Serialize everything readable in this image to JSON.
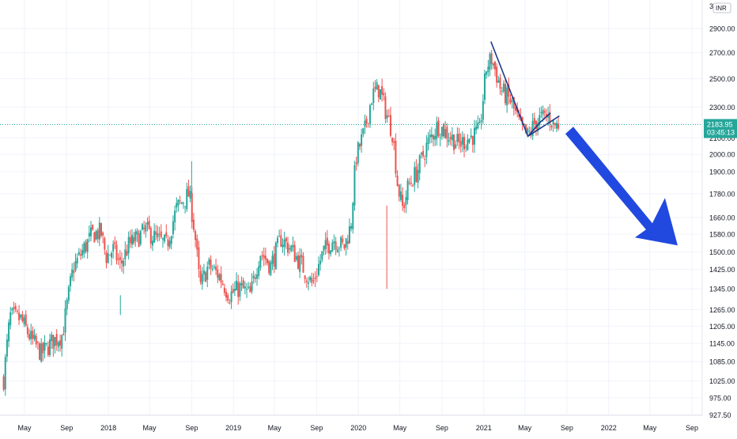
{
  "chart_data": {
    "type": "candlestick",
    "currency_badge": "INR",
    "top_label": "31​00",
    "log_scale": true,
    "grid": true,
    "y_ticks": [
      2900,
      2700,
      2500,
      2300,
      2100,
      2000,
      1900,
      1780,
      1660,
      1580,
      1500,
      1425,
      1345,
      1265,
      1205,
      1145,
      1085,
      1025,
      975,
      927.5
    ],
    "y_tick_labels": [
      "2900.00",
      "2700.00",
      "2500.00",
      "2300.00",
      "2100.00",
      "2000.00",
      "1900.00",
      "1780.00",
      "1660.00",
      "1580.00",
      "1500.00",
      "1425.00",
      "1345.00",
      "1265.00",
      "1205.00",
      "1145.00",
      "1085.00",
      "1025.00",
      "975.00",
      "927.50"
    ],
    "x_ticks": [
      {
        "label": "May",
        "date": "2017-05-01"
      },
      {
        "label": "Sep",
        "date": "2017-09-01"
      },
      {
        "label": "2018",
        "date": "2018-01-01"
      },
      {
        "label": "May",
        "date": "2018-05-01"
      },
      {
        "label": "Sep",
        "date": "2018-09-01"
      },
      {
        "label": "2019",
        "date": "2019-01-01"
      },
      {
        "label": "May",
        "date": "2019-05-01"
      },
      {
        "label": "Sep",
        "date": "2019-09-01"
      },
      {
        "label": "2020",
        "date": "2020-01-01"
      },
      {
        "label": "May",
        "date": "2020-05-01"
      },
      {
        "label": "Sep",
        "date": "2020-09-01"
      },
      {
        "label": "2021",
        "date": "2021-01-01"
      },
      {
        "label": "May",
        "date": "2021-05-01"
      },
      {
        "label": "Sep",
        "date": "2021-09-01"
      },
      {
        "label": "2022",
        "date": "2022-01-01"
      },
      {
        "label": "May",
        "date": "2022-05-01"
      },
      {
        "label": "Sep",
        "date": "2022-09-01"
      }
    ],
    "last_price": 2183.95,
    "last_price_label": "2183.95",
    "countdown_label": "03:45:13",
    "colors": {
      "up": "#26a69a",
      "down": "#ef5350",
      "trendline": "#1e3a8a",
      "arrow": "#2149e0",
      "price_line": "#26a69a",
      "grid": "#f0f3fa",
      "axis_text": "#131722"
    },
    "price_path": [
      [
        "2017-03-01",
        1030
      ],
      [
        "2017-03-20",
        1240
      ],
      [
        "2017-04-20",
        1230
      ],
      [
        "2017-05-20",
        1160
      ],
      [
        "2017-06-20",
        1110
      ],
      [
        "2017-07-20",
        1150
      ],
      [
        "2017-08-20",
        1175
      ],
      [
        "2017-09-20",
        1430
      ],
      [
        "2017-10-20",
        1510
      ],
      [
        "2017-11-15",
        1580
      ],
      [
        "2017-12-10",
        1590
      ],
      [
        "2017-12-25",
        1480
      ],
      [
        "2018-01-15",
        1510
      ],
      [
        "2018-02-05",
        1440
      ],
      [
        "2018-03-01",
        1530
      ],
      [
        "2018-03-25",
        1560
      ],
      [
        "2018-04-20",
        1600
      ],
      [
        "2018-05-20",
        1560
      ],
      [
        "2018-06-20",
        1530
      ],
      [
        "2018-07-20",
        1710
      ],
      [
        "2018-08-25",
        1780
      ],
      [
        "2018-09-10",
        1590
      ],
      [
        "2018-09-25",
        1350
      ],
      [
        "2018-10-20",
        1440
      ],
      [
        "2018-11-20",
        1400
      ],
      [
        "2018-12-20",
        1320
      ],
      [
        "2019-01-20",
        1350
      ],
      [
        "2019-02-20",
        1320
      ],
      [
        "2019-03-20",
        1500
      ],
      [
        "2019-04-20",
        1440
      ],
      [
        "2019-05-20",
        1560
      ],
      [
        "2019-06-20",
        1510
      ],
      [
        "2019-07-20",
        1440
      ],
      [
        "2019-08-20",
        1360
      ],
      [
        "2019-09-20",
        1500
      ],
      [
        "2019-10-20",
        1560
      ],
      [
        "2019-11-20",
        1520
      ],
      [
        "2019-12-10",
        1620
      ],
      [
        "2019-12-25",
        1980
      ],
      [
        "2020-01-20",
        2150
      ],
      [
        "2020-02-10",
        2380
      ],
      [
        "2020-03-01",
        2430
      ],
      [
        "2020-03-20",
        2280
      ],
      [
        "2020-04-10",
        2130
      ],
      [
        "2020-04-25",
        1820
      ],
      [
        "2020-05-10",
        1700
      ],
      [
        "2020-05-25",
        1820
      ],
      [
        "2020-06-20",
        1900
      ],
      [
        "2020-07-20",
        2060
      ],
      [
        "2020-08-20",
        2180
      ],
      [
        "2020-09-20",
        2120
      ],
      [
        "2020-10-20",
        2060
      ],
      [
        "2020-11-20",
        2100
      ],
      [
        "2020-12-20",
        2140
      ],
      [
        "2021-01-10",
        2600
      ],
      [
        "2021-01-25",
        2650
      ],
      [
        "2021-02-20",
        2420
      ],
      [
        "2021-03-20",
        2340
      ],
      [
        "2021-04-20",
        2160
      ],
      [
        "2021-05-10",
        2110
      ],
      [
        "2021-06-01",
        2200
      ],
      [
        "2021-06-20",
        2230
      ],
      [
        "2021-07-10",
        2240
      ],
      [
        "2021-07-25",
        2180
      ],
      [
        "2021-08-10",
        2183.95
      ]
    ],
    "annotations": {
      "trendlines": [
        [
          [
            "2021-01-22",
            2790
          ],
          [
            "2021-05-10",
            2110
          ]
        ],
        [
          [
            "2021-05-10",
            2110
          ],
          [
            "2021-06-15",
            2200
          ],
          [
            "2021-07-15",
            2260
          ]
        ],
        [
          [
            "2021-05-10",
            2110
          ],
          [
            "2021-08-10",
            2240
          ]
        ]
      ],
      "arrow_direction": "down-right"
    }
  }
}
